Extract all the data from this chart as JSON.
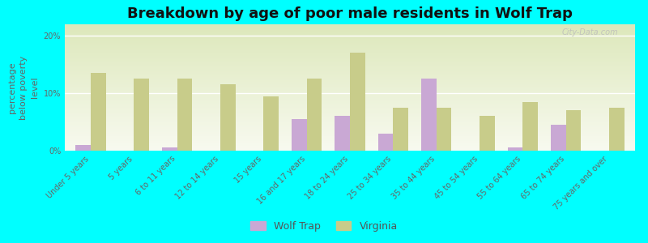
{
  "title": "Breakdown by age of poor male residents in Wolf Trap",
  "ylabel": "percentage\nbelow poverty\nlevel",
  "categories": [
    "Under 5 years",
    "5 years",
    "6 to 11 years",
    "12 to 14 years",
    "15 years",
    "16 and 17 years",
    "18 to 24 years",
    "25 to 34 years",
    "35 to 44 years",
    "45 to 54 years",
    "55 to 64 years",
    "65 to 74 years",
    "75 years and over"
  ],
  "wolf_trap": [
    1.0,
    0.0,
    0.5,
    0.0,
    0.0,
    5.5,
    6.0,
    3.0,
    12.5,
    0.0,
    0.5,
    4.5,
    0.0
  ],
  "virginia": [
    13.5,
    12.5,
    12.5,
    11.5,
    9.5,
    12.5,
    17.0,
    7.5,
    7.5,
    6.0,
    8.5,
    7.0,
    7.5
  ],
  "wolf_trap_color": "#c9a8d4",
  "virginia_color": "#c8cc8a",
  "background_color": "#00ffff",
  "grad_top": "#dde8bb",
  "grad_bottom": "#f8faf0",
  "ylim": [
    0,
    22
  ],
  "yticks": [
    0,
    10,
    20
  ],
  "ytick_labels": [
    "0%",
    "10%",
    "20%"
  ],
  "bar_width": 0.35,
  "title_fontsize": 13,
  "axis_label_fontsize": 8,
  "tick_fontsize": 7,
  "legend_fontsize": 9,
  "watermark": "City-Data.com"
}
